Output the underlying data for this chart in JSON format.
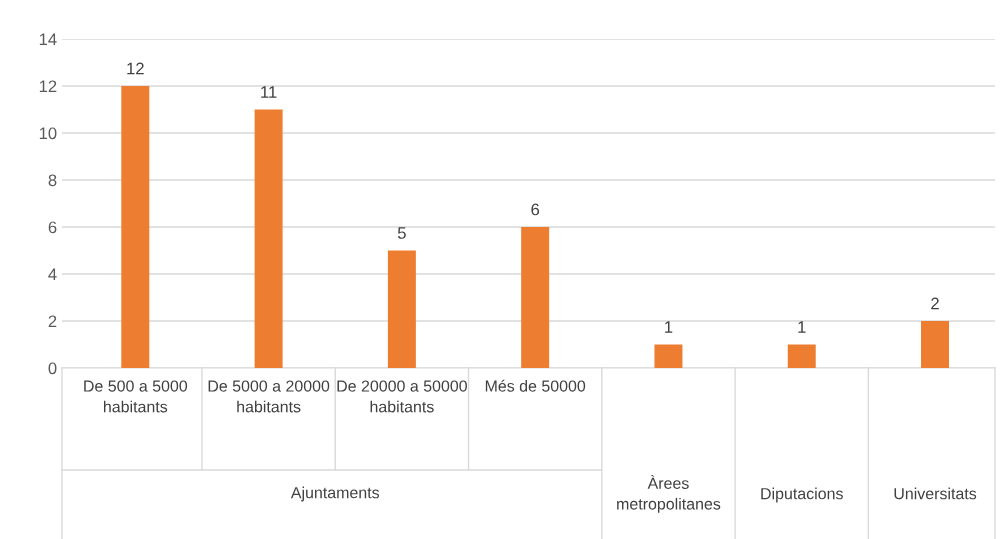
{
  "chart_data": {
    "type": "bar",
    "categories": [
      "De 500 a 5000 habitants",
      "De 5000 a 20000 habitants",
      "De 20000 a 50000 habitants",
      "Més de 50000",
      "Àrees metropolitanes",
      "Diputacions",
      "Universitats"
    ],
    "values": [
      12,
      11,
      5,
      6,
      1,
      1,
      2
    ],
    "color": "#ed7d31",
    "ylim": [
      0,
      14
    ],
    "yticks": [
      0,
      2,
      4,
      6,
      8,
      10,
      12,
      14
    ],
    "grid": "y",
    "data_labels": true,
    "annotations": [
      "Ajuntaments"
    ]
  }
}
